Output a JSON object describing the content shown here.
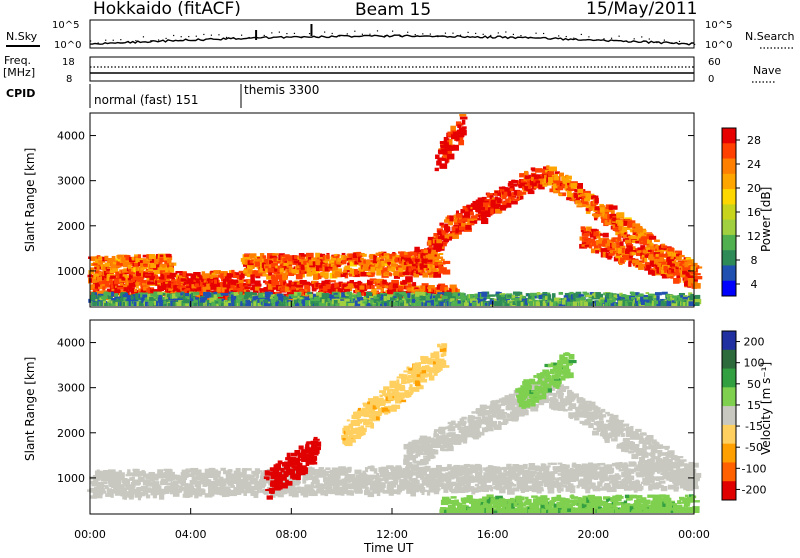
{
  "header": {
    "station": "Hokkaido (fitACF)",
    "beam": "Beam 15",
    "date": "15/May/2011"
  },
  "top_panels": {
    "nsky_label": "N.Sky",
    "nsearch_label": "N.Search",
    "nsky_ticks": [
      "10^5",
      "10^0"
    ],
    "freq_label_1": "Freq.",
    "freq_label_2": "[MHz]",
    "freq_ticks": [
      "18",
      "8"
    ],
    "nave_label": "Nave",
    "nave_ticks": [
      "60",
      "0"
    ],
    "cpid_label": "CPID",
    "cpid_segments": [
      {
        "label": "normal (fast) 151",
        "start_hour": 0,
        "end_hour": 6
      },
      {
        "label": "themis 3300",
        "start_hour": 6,
        "end_hour": 24
      }
    ]
  },
  "power_panel": {
    "ylabel": "Slant Range [km]",
    "colorbar_label": "Power [dB]",
    "colorbar_ticks": [
      "28",
      "24",
      "20",
      "16",
      "12",
      "8",
      "4"
    ],
    "colorbar_colors": [
      "#e60000",
      "#ff4000",
      "#ff8000",
      "#ffa500",
      "#ffd700",
      "#c8d41c",
      "#a0d040",
      "#50b050",
      "#2e8b57",
      "#2050b0",
      "#0000ff"
    ]
  },
  "velocity_panel": {
    "ylabel": "Slant Range [km]",
    "colorbar_label": "Velocity [m s⁻¹]",
    "colorbar_ticks": [
      "200",
      "100",
      "50",
      "15",
      "-15",
      "-50",
      "-100",
      "-200"
    ],
    "colorbar_colors": [
      "#2030a0",
      "#2d6a3c",
      "#32a040",
      "#80d050",
      "#c8c8c0",
      "#ffd060",
      "#ffa000",
      "#ff6000",
      "#e00000"
    ]
  },
  "x_axis": {
    "label": "Time UT",
    "ticks": [
      "00:00",
      "04:00",
      "08:00",
      "12:00",
      "16:00",
      "20:00",
      "00:00"
    ]
  },
  "chart_data": [
    {
      "type": "heatmap",
      "title": "Power",
      "xlabel": "Time UT",
      "ylabel": "Slant Range [km]",
      "xlim_hours": [
        0,
        24
      ],
      "ylim": [
        200,
        4500
      ],
      "y_ticks": [
        1000,
        2000,
        3000,
        4000
      ],
      "colorbar_range_db": [
        0,
        30
      ],
      "echo_bands": [
        {
          "start_hour": 0.0,
          "end_hour": 3.2,
          "range_km_start": 1100,
          "range_km_end": 1150,
          "power_db": 24
        },
        {
          "start_hour": 0.0,
          "end_hour": 6.0,
          "range_km_start": 700,
          "range_km_end": 800,
          "power_db": 26
        },
        {
          "start_hour": 3.0,
          "end_hour": 11.0,
          "range_km_start": 600,
          "range_km_end": 550,
          "power_db": 28
        },
        {
          "start_hour": 11.0,
          "end_hour": 14.5,
          "range_km_start": 600,
          "range_km_end": 450,
          "power_db": 26
        },
        {
          "start_hour": 6.0,
          "end_hour": 14.0,
          "range_km_start": 1150,
          "range_km_end": 1200,
          "power_db": 24
        },
        {
          "start_hour": 12.5,
          "end_hour": 14.2,
          "range_km_start": 1000,
          "range_km_end": 2000,
          "power_db": 28
        },
        {
          "start_hour": 14.2,
          "end_hour": 18.0,
          "range_km_start": 2000,
          "range_km_end": 3200,
          "power_db": 28
        },
        {
          "start_hour": 18.0,
          "end_hour": 24.0,
          "range_km_start": 3200,
          "range_km_end": 900,
          "power_db": 24
        },
        {
          "start_hour": 19.5,
          "end_hour": 24.0,
          "range_km_start": 1800,
          "range_km_end": 900,
          "power_db": 26
        },
        {
          "start_hour": 13.8,
          "end_hour": 14.8,
          "range_km_start": 3500,
          "range_km_end": 4400,
          "power_db": 28
        },
        {
          "start_hour": 0.0,
          "end_hour": 24.0,
          "range_km_start": 300,
          "range_km_end": 300,
          "power_db": 8
        }
      ]
    },
    {
      "type": "heatmap",
      "title": "Velocity",
      "xlabel": "Time UT",
      "ylabel": "Slant Range [km]",
      "xlim_hours": [
        0,
        24
      ],
      "ylim": [
        200,
        4500
      ],
      "y_ticks": [
        1000,
        2000,
        3000,
        4000
      ],
      "colorbar_range_ms": [
        -200,
        200
      ],
      "echo_bands": [
        {
          "start_hour": 0.0,
          "end_hour": 24.0,
          "range_km_start": 900,
          "range_km_end": 1100,
          "velocity_ms": 0
        },
        {
          "start_hour": 12.5,
          "end_hour": 18.0,
          "range_km_start": 1500,
          "range_km_end": 3000,
          "velocity_ms": 0
        },
        {
          "start_hour": 18.0,
          "end_hour": 24.0,
          "range_km_start": 3000,
          "range_km_end": 1000,
          "velocity_ms": 0
        },
        {
          "start_hour": 7.0,
          "end_hour": 9.0,
          "range_km_start": 900,
          "range_km_end": 1700,
          "velocity_ms": -200
        },
        {
          "start_hour": 10.0,
          "end_hour": 14.0,
          "range_km_start": 2000,
          "range_km_end": 3800,
          "velocity_ms": -50
        },
        {
          "start_hour": 14.0,
          "end_hour": 24.0,
          "range_km_start": 350,
          "range_km_end": 350,
          "velocity_ms": 50
        },
        {
          "start_hour": 17.0,
          "end_hour": 19.0,
          "range_km_start": 2800,
          "range_km_end": 3600,
          "velocity_ms": 50
        }
      ]
    }
  ]
}
